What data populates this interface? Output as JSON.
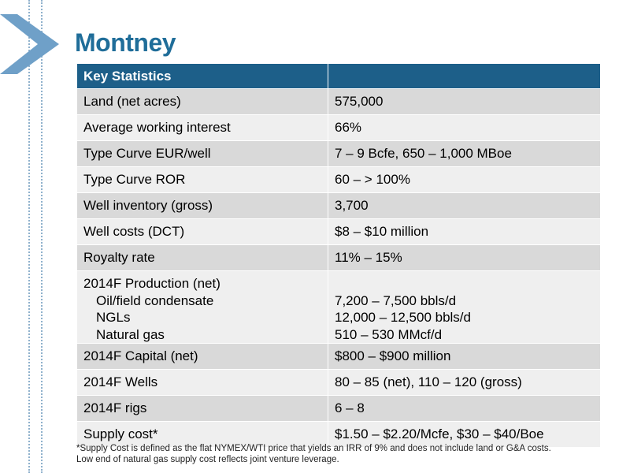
{
  "title": "Montney",
  "table": {
    "header": [
      "Key Statistics",
      ""
    ],
    "rows": [
      {
        "label": "Land (net acres)",
        "value": "575,000"
      },
      {
        "label": "Average working interest",
        "value": "66%"
      },
      {
        "label": "Type Curve EUR/well",
        "value": "7 – 9 Bcfe, 650 – 1,000 MBoe"
      },
      {
        "label": "Type Curve ROR",
        "value": "60 – > 100%"
      },
      {
        "label": "Well inventory (gross)",
        "value": "3,700"
      },
      {
        "label": "Well costs (DCT)",
        "value": "$8 – $10 million"
      },
      {
        "label": "Royalty rate",
        "value": "11% – 15%"
      }
    ],
    "production": {
      "label": "2014F Production (net)",
      "items": [
        {
          "label": "Oil/field condensate",
          "value": "7,200 – 7,500 bbls/d"
        },
        {
          "label": "NGLs",
          "value": "12,000 – 12,500 bbls/d"
        },
        {
          "label": "Natural gas",
          "value": "510 – 530 MMcf/d"
        }
      ]
    },
    "rows_after": [
      {
        "label": "2014F Capital (net)",
        "value": "$800 – $900 million"
      },
      {
        "label": "2014F Wells",
        "value": "80 – 85 (net), 110 – 120 (gross)"
      },
      {
        "label": "2014F rigs",
        "value": "6 – 8"
      },
      {
        "label": "Supply cost*",
        "value": "$1.50 – $2.20/Mcfe, $30 – $40/Boe"
      }
    ]
  },
  "footnote": {
    "line1": "*Supply Cost is defined as the flat NYMEX/WTI price that yields an IRR of 9% and does not include land or G&A costs.",
    "line2": "Low end of natural gas supply cost reflects joint venture leverage."
  },
  "colors": {
    "title": "#1f6d99",
    "header": "#1d5f89",
    "row_dark": "#d9d9d9",
    "row_light": "#efefef",
    "chevron": "#6fa0c8"
  }
}
